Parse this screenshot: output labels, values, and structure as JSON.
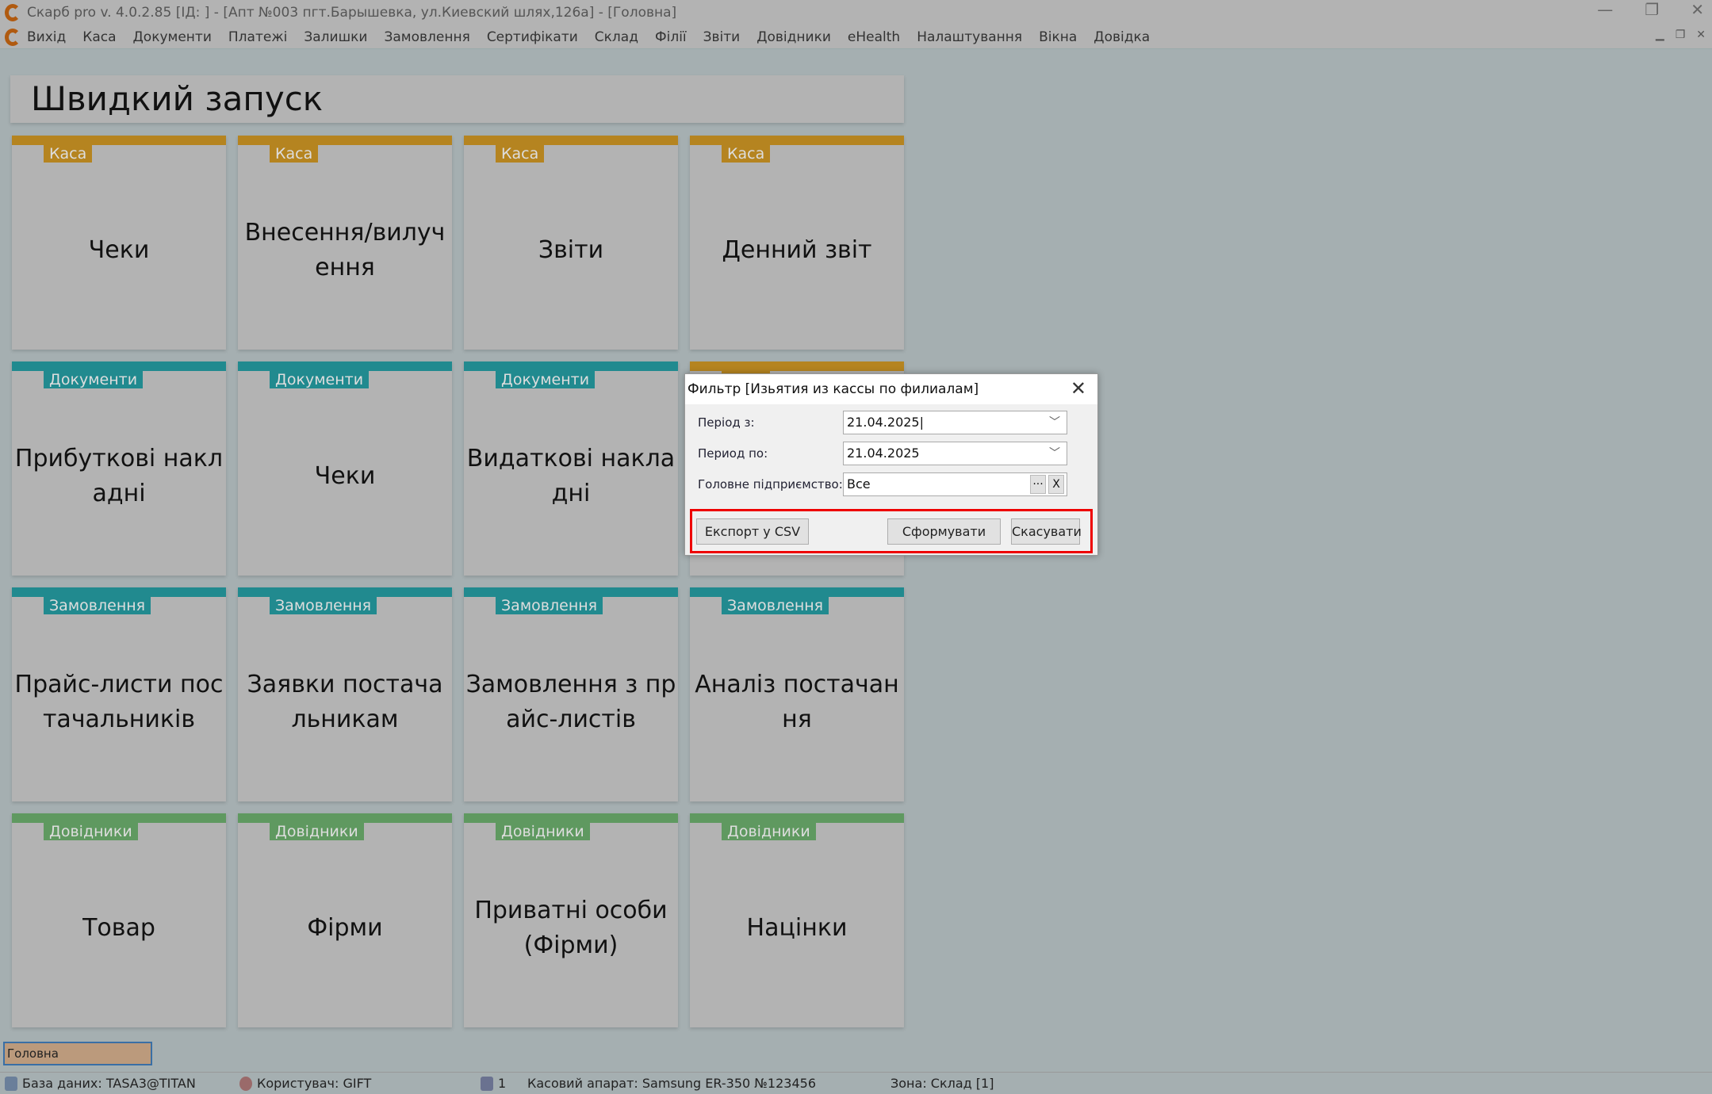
{
  "window": {
    "title": "Скарб pro v. 4.0.2.85 [ІД:        ] - [Апт №003 пгт.Барышевка, ул.Киевский шлях,126а] - [Головна]",
    "min": "—",
    "restore": "❐",
    "close": "✕"
  },
  "menu": [
    "Вихід",
    "Каса",
    "Документи",
    "Платежі",
    "Залишки",
    "Замовлення",
    "Сертифікати",
    "Склад",
    "Філії",
    "Звіти",
    "Довідники",
    "eHealth",
    "Налаштування",
    "Вікна",
    "Довідка"
  ],
  "quick_launch_title": "Швидкий запуск",
  "colors": {
    "Каса": "#b58420",
    "Документи": "#218a8f",
    "Замовлення": "#218a8f",
    "Довідники": "#5f9960"
  },
  "tiles": [
    {
      "tag": "Каса",
      "label": "Чеки"
    },
    {
      "tag": "Каса",
      "label": "Внесення/вилучення"
    },
    {
      "tag": "Каса",
      "label": "Звіти"
    },
    {
      "tag": "Каса",
      "label": "Денний звіт"
    },
    {
      "tag": "Документи",
      "label": "Прибуткові накладні"
    },
    {
      "tag": "Документи",
      "label": "Чеки"
    },
    {
      "tag": "Документи",
      "label": "Видаткові накладні"
    },
    {
      "tag": "Каса",
      "label": ""
    },
    {
      "tag": "Замовлення",
      "label": "Прайс-листи постачальників"
    },
    {
      "tag": "Замовлення",
      "label": "Заявки постачальникам"
    },
    {
      "tag": "Замовлення",
      "label": "Замовлення з прайс-листів"
    },
    {
      "tag": "Замовлення",
      "label": "Аналіз постачання"
    },
    {
      "tag": "Довідники",
      "label": "Товар"
    },
    {
      "tag": "Довідники",
      "label": "Фірми"
    },
    {
      "tag": "Довідники",
      "label": "Приватні особи (Фірми)"
    },
    {
      "tag": "Довідники",
      "label": "Націнки"
    }
  ],
  "dialog": {
    "title": "Фильтр [Изьятия из кассы по филиалам]",
    "period_from_label": "Період з:",
    "period_from": "21.04.2025",
    "period_to_label": "Период по:",
    "period_to": "21.04.2025",
    "enterprise_label": "Головне підприємство:",
    "enterprise": "Все",
    "ellipsis": "···",
    "clear": "X",
    "export": "Експорт у CSV",
    "generate": "Сформувати",
    "cancel": "Скасувати"
  },
  "tab": "Головна",
  "status": {
    "db": "База даних: TASA3@TITAN",
    "user": "Користувач: GIFT",
    "count": "1",
    "register": "Касовий апарат: Samsung ER-350 №123456",
    "zone": "Зона: Склад [1]"
  }
}
